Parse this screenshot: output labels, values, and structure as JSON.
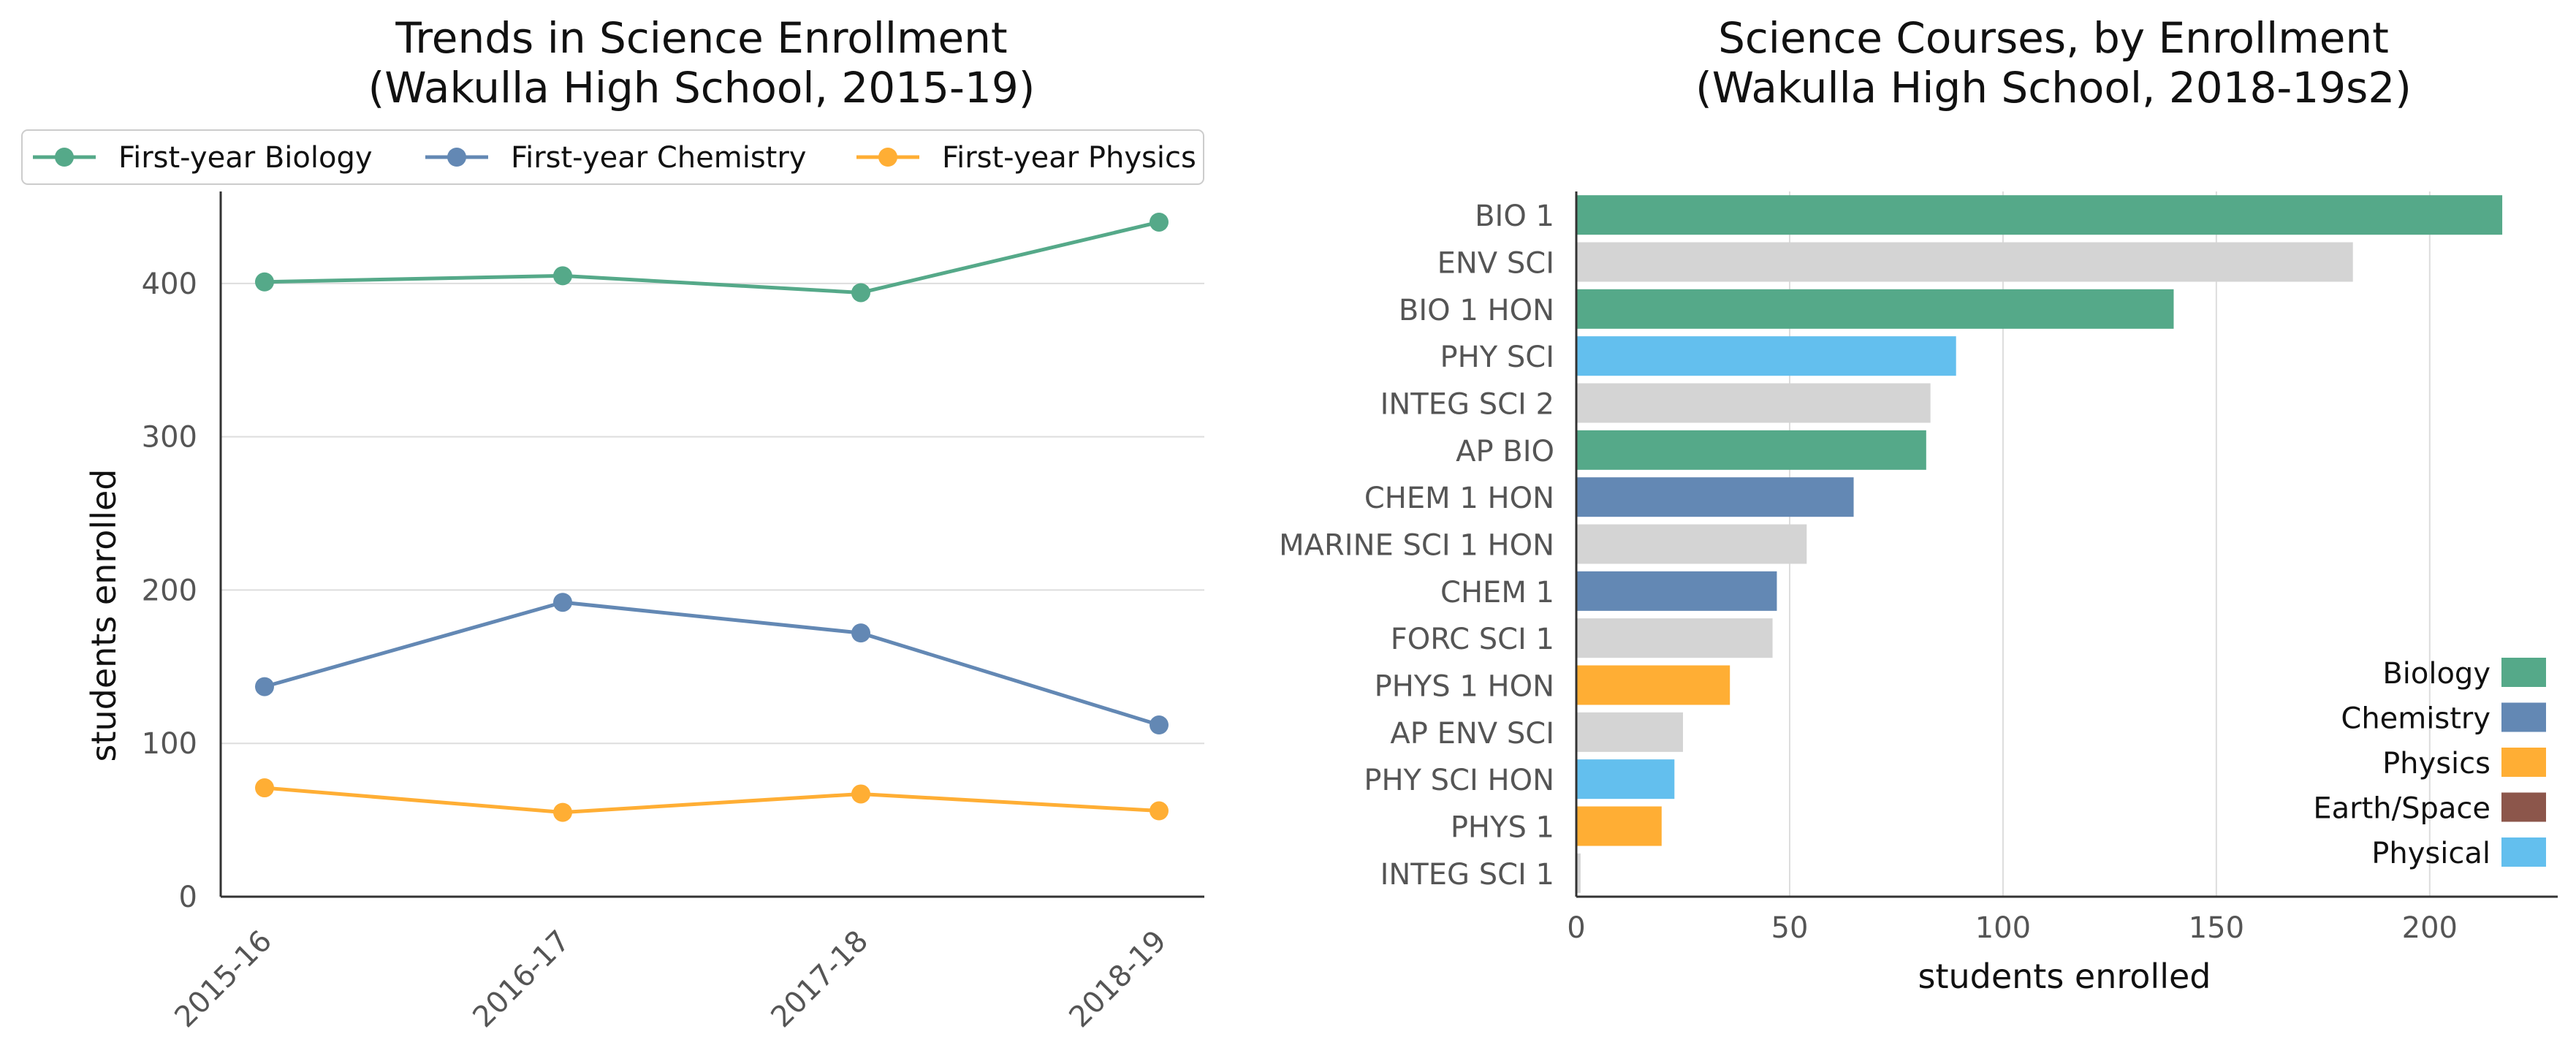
{
  "chart_data": [
    {
      "type": "line",
      "title": "Trends in Science Enrollment",
      "subtitle": "(Wakulla High School, 2015-19)",
      "xlabel": "",
      "ylabel": "students enrolled",
      "categories": [
        "2015-16",
        "2016-17",
        "2017-18",
        "2018-19"
      ],
      "ylim": [
        0,
        460
      ],
      "yticks": [
        "0",
        "100",
        "200",
        "300",
        "400"
      ],
      "grid": "horizontal",
      "legend_position": "top",
      "series": [
        {
          "name": "First-year Biology",
          "color": "#55a989",
          "values": [
            401,
            405,
            394,
            440
          ]
        },
        {
          "name": "First-year Chemistry",
          "color": "#6388b4",
          "values": [
            137,
            192,
            172,
            112
          ]
        },
        {
          "name": "First-year Physics",
          "color": "#ffae34",
          "values": [
            71,
            55,
            67,
            56
          ]
        }
      ]
    },
    {
      "type": "bar",
      "orientation": "horizontal",
      "title": "Science Courses, by Enrollment",
      "subtitle": "(Wakulla High School, 2018-19s2)",
      "xlabel": "students enrolled",
      "ylabel": "",
      "xlim": [
        0,
        230
      ],
      "xticks": [
        "0",
        "50",
        "100",
        "150",
        "200"
      ],
      "grid": "vertical",
      "legend_position": "bottom-right",
      "categories": [
        "BIO 1",
        "ENV SCI",
        "BIO 1 HON",
        "PHY SCI",
        "INTEG SCI 2",
        "AP BIO",
        "CHEM 1 HON",
        "MARINE SCI 1 HON",
        "CHEM 1",
        "FORC SCI 1",
        "PHYS 1 HON",
        "AP ENV SCI",
        "PHY SCI HON",
        "PHYS 1",
        "INTEG SCI 1"
      ],
      "values": [
        217,
        182,
        140,
        89,
        83,
        82,
        65,
        54,
        47,
        46,
        36,
        25,
        23,
        20,
        1
      ],
      "bar_colors": [
        "#55a989",
        "#d4d4d4",
        "#55a989",
        "#63bfee",
        "#d4d4d4",
        "#55a989",
        "#6388b4",
        "#d4d4d4",
        "#6388b4",
        "#d4d4d4",
        "#ffae34",
        "#d4d4d4",
        "#63bfee",
        "#ffae34",
        "#d4d4d4"
      ],
      "legend": [
        {
          "name": "Biology",
          "color": "#55a989"
        },
        {
          "name": "Chemistry",
          "color": "#6388b4"
        },
        {
          "name": "Physics",
          "color": "#ffae34"
        },
        {
          "name": "Earth/Space",
          "color": "#8c564b"
        },
        {
          "name": "Physical",
          "color": "#63bfee"
        }
      ]
    }
  ]
}
